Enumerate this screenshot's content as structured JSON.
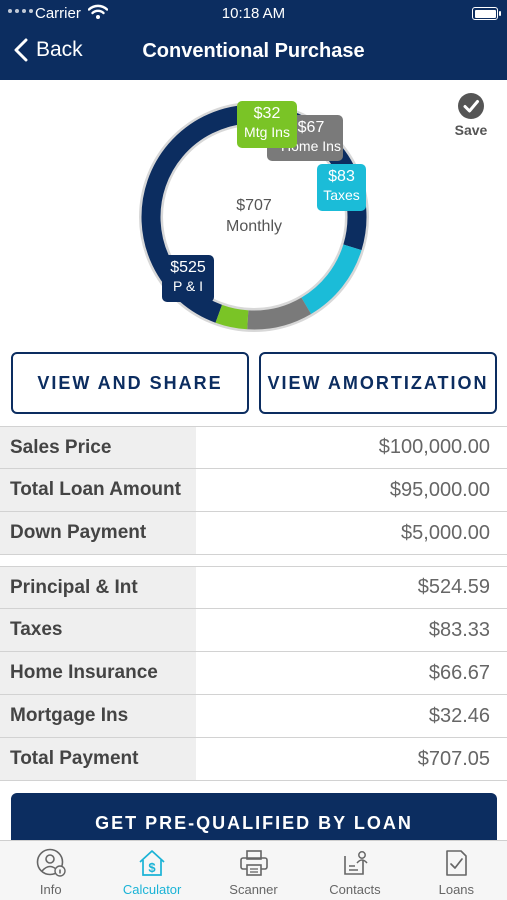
{
  "status_bar": {
    "carrier": "Carrier",
    "time": "10:18 AM"
  },
  "nav": {
    "back_label": "Back",
    "title": "Conventional Purchase"
  },
  "save_label": "Save",
  "chart_data": {
    "type": "pie",
    "style": "donut",
    "center_label": [
      "$707",
      "Monthly"
    ],
    "slices": [
      {
        "name": "P & I",
        "label": "$525",
        "value": 524.59,
        "color": "#0c2d60"
      },
      {
        "name": "Taxes",
        "label": "$83",
        "value": 83.33,
        "color": "#1bbcd8"
      },
      {
        "name": "Home Ins",
        "label": "$67",
        "value": 66.67,
        "color": "#7a7a7a"
      },
      {
        "name": "Mtg Ins",
        "label": "$32",
        "value": 32.46,
        "color": "#7ac426"
      }
    ]
  },
  "buttons": {
    "view_share": "VIEW AND SHARE",
    "view_amortization": "VIEW AMORTIZATION"
  },
  "loan_summary": [
    {
      "label": "Sales Price",
      "value": "$100,000.00"
    },
    {
      "label": "Total Loan Amount",
      "value": "$95,000.00"
    },
    {
      "label": "Down Payment",
      "value": "$5,000.00"
    }
  ],
  "payment_breakdown": [
    {
      "label": "Principal & Int",
      "value": "$524.59"
    },
    {
      "label": "Taxes",
      "value": "$83.33"
    },
    {
      "label": "Home Insurance",
      "value": "$66.67"
    },
    {
      "label": "Mortgage Ins",
      "value": "$32.46"
    },
    {
      "label": "Total Payment",
      "value": "$707.05"
    }
  ],
  "cta_label": "GET PRE-QUALIFIED BY LOAN",
  "tabs": [
    {
      "label": "Info",
      "icon": "info-person-icon"
    },
    {
      "label": "Calculator",
      "icon": "calculator-house-icon",
      "active": true
    },
    {
      "label": "Scanner",
      "icon": "printer-icon"
    },
    {
      "label": "Contacts",
      "icon": "contacts-icon"
    },
    {
      "label": "Loans",
      "icon": "loan-document-icon"
    }
  ]
}
